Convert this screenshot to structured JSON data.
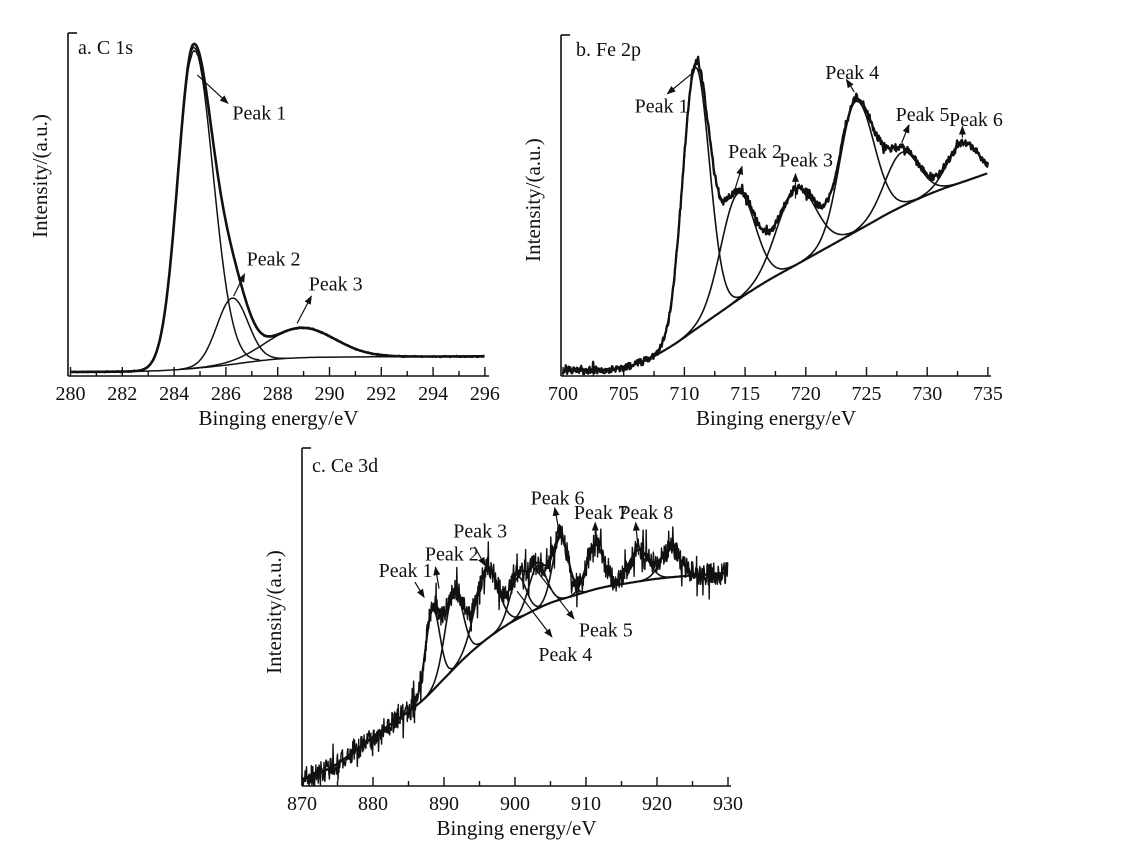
{
  "figure": {
    "background_color": "#ffffff",
    "ink_color": "#111111"
  },
  "chart_data": [
    {
      "id": "a",
      "type": "line",
      "panel_label": "a. C 1s",
      "xlabel": "Binging energy/eV",
      "ylabel": "Intensity/(a.u.)",
      "x_range": [
        280,
        296
      ],
      "x_major_tick": 2,
      "x_minor_tick": 1,
      "x_tick_labels": [
        "280",
        "282",
        "284",
        "286",
        "288",
        "290",
        "292",
        "294",
        "296"
      ],
      "y_axis": "unlabeled arbitrary units",
      "legend": "none",
      "grid": "off",
      "background_points": [
        [
          280,
          0.012
        ],
        [
          282,
          0.013
        ],
        [
          283.5,
          0.016
        ],
        [
          285,
          0.024
        ],
        [
          286,
          0.032
        ],
        [
          287,
          0.042
        ],
        [
          288,
          0.05
        ],
        [
          289,
          0.054
        ],
        [
          291,
          0.056
        ],
        [
          296,
          0.058
        ]
      ],
      "components": [
        {
          "name": "Peak 1",
          "center": 284.75,
          "amplitude": 0.945,
          "sigma_left": 0.6,
          "sigma_right": 0.75
        },
        {
          "name": "Peak 2",
          "center": 286.25,
          "amplitude": 0.195,
          "sigma_left": 0.6,
          "sigma_right": 0.6
        },
        {
          "name": "Peak 3",
          "center": 288.9,
          "amplitude": 0.088,
          "sigma_left": 1.3,
          "sigma_right": 1.3
        }
      ],
      "noise_amplitude": 0.0035,
      "noise_spike_chance": 0,
      "apex_gap": {
        "center": 284.75,
        "depth": 0.022,
        "sigma": 0.45
      },
      "annotations": [
        {
          "text": "Peak 1",
          "tx": 286.25,
          "ty": 0.775,
          "anchor": "start",
          "x1": 284.9,
          "y1": 0.885,
          "x2": 286.08,
          "y2": 0.802
        },
        {
          "text": "Peak 2",
          "tx": 286.8,
          "ty": 0.345,
          "anchor": "start",
          "x1": 286.3,
          "y1": 0.235,
          "x2": 286.72,
          "y2": 0.3
        },
        {
          "text": "Peak 3",
          "tx": 289.2,
          "ty": 0.272,
          "anchor": "start",
          "x1": 288.75,
          "y1": 0.155,
          "x2": 289.3,
          "y2": 0.235
        }
      ]
    },
    {
      "id": "b",
      "type": "line",
      "panel_label": "b. Fe 2p",
      "xlabel": "Binging energy/eV",
      "ylabel": "Intensity/(a.u.)",
      "x_range": [
        700,
        735
      ],
      "x_major_tick": 5,
      "x_minor_tick": 2.5,
      "x_tick_labels": [
        "700",
        "705",
        "710",
        "715",
        "720",
        "725",
        "730",
        "735"
      ],
      "y_axis": "unlabeled arbitrary units",
      "legend": "none",
      "grid": "off",
      "background_points": [
        [
          700,
          0.015
        ],
        [
          703,
          0.018
        ],
        [
          705,
          0.025
        ],
        [
          707,
          0.05
        ],
        [
          709,
          0.09
        ],
        [
          711,
          0.14
        ],
        [
          713,
          0.19
        ],
        [
          715,
          0.24
        ],
        [
          717,
          0.285
        ],
        [
          719,
          0.325
        ],
        [
          721,
          0.365
        ],
        [
          723,
          0.405
        ],
        [
          725,
          0.445
        ],
        [
          727,
          0.485
        ],
        [
          729,
          0.52
        ],
        [
          731,
          0.55
        ],
        [
          733,
          0.575
        ],
        [
          735,
          0.6
        ]
      ],
      "components": [
        {
          "name": "Peak 1",
          "center": 710.9,
          "amplitude": 0.775,
          "sigma_left": 1.05,
          "sigma_right": 1.15
        },
        {
          "name": "Peak 2",
          "center": 714.4,
          "amplitude": 0.315,
          "sigma_left": 1.4,
          "sigma_right": 1.4
        },
        {
          "name": "Peak 3",
          "center": 719.2,
          "amplitude": 0.225,
          "sigma_left": 1.6,
          "sigma_right": 1.6
        },
        {
          "name": "Peak 4",
          "center": 724.1,
          "amplitude": 0.385,
          "sigma_left": 1.3,
          "sigma_right": 1.5
        },
        {
          "name": "Peak 5",
          "center": 727.9,
          "amplitude": 0.16,
          "sigma_left": 1.4,
          "sigma_right": 1.4
        },
        {
          "name": "Peak 6",
          "center": 732.9,
          "amplitude": 0.115,
          "sigma_left": 1.25,
          "sigma_right": 1.25
        }
      ],
      "noise_amplitude": 0.011,
      "noise_spike_chance": 0.06,
      "annotations": [
        {
          "text": "Peak 1",
          "tx": 705.9,
          "ty": 0.8,
          "anchor": "start",
          "x1": 710.55,
          "y1": 0.893,
          "x2": 708.6,
          "y2": 0.835
        },
        {
          "text": "Peak 2",
          "tx": 713.6,
          "ty": 0.665,
          "anchor": "start",
          "x1": 714.1,
          "y1": 0.545,
          "x2": 714.75,
          "y2": 0.62
        },
        {
          "text": "Peak 3",
          "tx": 717.8,
          "ty": 0.64,
          "anchor": "start",
          "x1": 719.15,
          "y1": 0.525,
          "x2": 719.15,
          "y2": 0.598
        },
        {
          "text": "Peak 4",
          "tx": 721.6,
          "ty": 0.9,
          "anchor": "start",
          "x1": 724.0,
          "y1": 0.84,
          "x2": 723.35,
          "y2": 0.877
        },
        {
          "text": "Peak 5",
          "tx": 727.4,
          "ty": 0.775,
          "anchor": "start",
          "x1": 727.9,
          "y1": 0.69,
          "x2": 728.5,
          "y2": 0.743
        },
        {
          "text": "Peak 6",
          "tx": 731.8,
          "ty": 0.76,
          "anchor": "start",
          "x1": 732.9,
          "y1": 0.705,
          "x2": 732.9,
          "y2": 0.738
        }
      ]
    },
    {
      "id": "c",
      "type": "line",
      "panel_label": "c. Ce 3d",
      "xlabel": "Binging energy/eV",
      "ylabel": "Intensity/(a.u.)",
      "x_range": [
        870,
        930
      ],
      "x_major_tick": 10,
      "x_minor_tick": 5,
      "x_tick_labels": [
        "870",
        "880",
        "890",
        "900",
        "910",
        "920",
        "930"
      ],
      "y_axis": "unlabeled arbitrary units",
      "legend": "none",
      "grid": "off",
      "background_points": [
        [
          870,
          0.02
        ],
        [
          874,
          0.055
        ],
        [
          878,
          0.115
        ],
        [
          881,
          0.165
        ],
        [
          884,
          0.21
        ],
        [
          887,
          0.26
        ],
        [
          890,
          0.325
        ],
        [
          893,
          0.39
        ],
        [
          896,
          0.445
        ],
        [
          899,
          0.49
        ],
        [
          902,
          0.525
        ],
        [
          905,
          0.555
        ],
        [
          908,
          0.575
        ],
        [
          912,
          0.6
        ],
        [
          916,
          0.615
        ],
        [
          920,
          0.628
        ],
        [
          925,
          0.638
        ],
        [
          930,
          0.645
        ]
      ],
      "components": [
        {
          "name": "Peak 1",
          "center": 888.4,
          "amplitude": 0.245,
          "sigma_left": 1.0,
          "sigma_right": 1.0
        },
        {
          "name": "Peak 2",
          "center": 891.4,
          "amplitude": 0.235,
          "sigma_left": 1.25,
          "sigma_right": 1.25
        },
        {
          "name": "Peak 3",
          "center": 896.0,
          "amplitude": 0.215,
          "sigma_left": 1.6,
          "sigma_right": 1.6
        },
        {
          "name": "Peak 4",
          "center": 900.4,
          "amplitude": 0.125,
          "sigma_left": 1.15,
          "sigma_right": 1.15
        },
        {
          "name": "Peak 5",
          "center": 903.2,
          "amplitude": 0.13,
          "sigma_left": 1.25,
          "sigma_right": 1.25
        },
        {
          "name": "Peak 6",
          "center": 906.4,
          "amplitude": 0.19,
          "sigma_left": 1.1,
          "sigma_right": 1.1
        },
        {
          "name": "Peak 7",
          "center": 911.3,
          "amplitude": 0.135,
          "sigma_left": 1.2,
          "sigma_right": 1.2
        },
        {
          "name": "Peak 8",
          "center": 917.4,
          "amplitude": 0.095,
          "sigma_left": 1.4,
          "sigma_right": 1.4
        },
        {
          "name": "unlabeled",
          "center": 921.9,
          "amplitude": 0.085,
          "sigma_left": 1.4,
          "sigma_right": 1.4
        }
      ],
      "noise_amplitude": 0.034,
      "noise_spike_chance": 0.1,
      "annotations": [
        {
          "text": "Peak 1",
          "tx": 880.8,
          "ty": 0.655,
          "anchor": "start",
          "x1": 885.9,
          "y1": 0.618,
          "x2": 887.2,
          "y2": 0.572
        },
        {
          "text": "Peak 2",
          "tx": 887.3,
          "ty": 0.705,
          "anchor": "start",
          "x1": 889.3,
          "y1": 0.598,
          "x2": 888.8,
          "y2": 0.663
        },
        {
          "text": "Peak 3",
          "tx": 891.3,
          "ty": 0.775,
          "anchor": "start",
          "x1": 894.3,
          "y1": 0.725,
          "x2": 895.8,
          "y2": 0.668
        },
        {
          "text": "Peak 4",
          "tx": 903.3,
          "ty": 0.4,
          "anchor": "start",
          "x1": 900.3,
          "y1": 0.59,
          "x2": 905.2,
          "y2": 0.452
        },
        {
          "text": "Peak 5",
          "tx": 909.0,
          "ty": 0.475,
          "anchor": "start",
          "x1": 903.2,
          "y1": 0.648,
          "x2": 908.3,
          "y2": 0.507
        },
        {
          "text": "Peak 6",
          "tx": 902.2,
          "ty": 0.875,
          "anchor": "start",
          "x1": 906.3,
          "y1": 0.76,
          "x2": 905.6,
          "y2": 0.843
        },
        {
          "text": "Peak 7",
          "tx": 908.3,
          "ty": 0.83,
          "anchor": "start",
          "x1": 911.3,
          "y1": 0.728,
          "x2": 911.3,
          "y2": 0.798
        },
        {
          "text": "Peak 8",
          "tx": 914.7,
          "ty": 0.83,
          "anchor": "start",
          "x1": 917.4,
          "y1": 0.7,
          "x2": 917.0,
          "y2": 0.798
        }
      ]
    }
  ]
}
